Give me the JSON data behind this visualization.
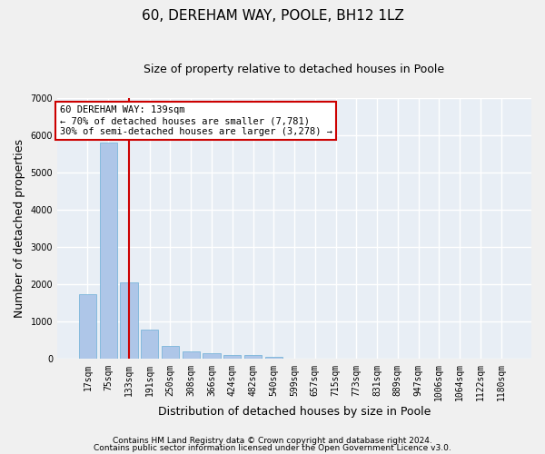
{
  "title": "60, DEREHAM WAY, POOLE, BH12 1LZ",
  "subtitle": "Size of property relative to detached houses in Poole",
  "xlabel": "Distribution of detached houses by size in Poole",
  "ylabel": "Number of detached properties",
  "categories": [
    "17sqm",
    "75sqm",
    "133sqm",
    "191sqm",
    "250sqm",
    "308sqm",
    "366sqm",
    "424sqm",
    "482sqm",
    "540sqm",
    "599sqm",
    "657sqm",
    "715sqm",
    "773sqm",
    "831sqm",
    "889sqm",
    "947sqm",
    "1006sqm",
    "1064sqm",
    "1122sqm",
    "1180sqm"
  ],
  "values": [
    1750,
    5800,
    2050,
    800,
    350,
    200,
    155,
    100,
    100,
    50,
    5,
    0,
    0,
    0,
    0,
    0,
    0,
    0,
    0,
    0,
    0
  ],
  "bar_color": "#aec6e8",
  "bar_edge_color": "#6baed6",
  "vline_x": 2,
  "vline_color": "#cc0000",
  "ylim": [
    0,
    7000
  ],
  "yticks": [
    0,
    1000,
    2000,
    3000,
    4000,
    5000,
    6000,
    7000
  ],
  "annotation_text": "60 DEREHAM WAY: 139sqm\n← 70% of detached houses are smaller (7,781)\n30% of semi-detached houses are larger (3,278) →",
  "annotation_box_color": "#ffffff",
  "annotation_box_edge": "#cc0000",
  "footer1": "Contains HM Land Registry data © Crown copyright and database right 2024.",
  "footer2": "Contains public sector information licensed under the Open Government Licence v3.0.",
  "bg_color": "#e8eef5",
  "grid_color": "#ffffff",
  "title_fontsize": 11,
  "subtitle_fontsize": 9,
  "tick_fontsize": 7,
  "label_fontsize": 9,
  "annotation_fontsize": 7.5,
  "footer_fontsize": 6.5
}
